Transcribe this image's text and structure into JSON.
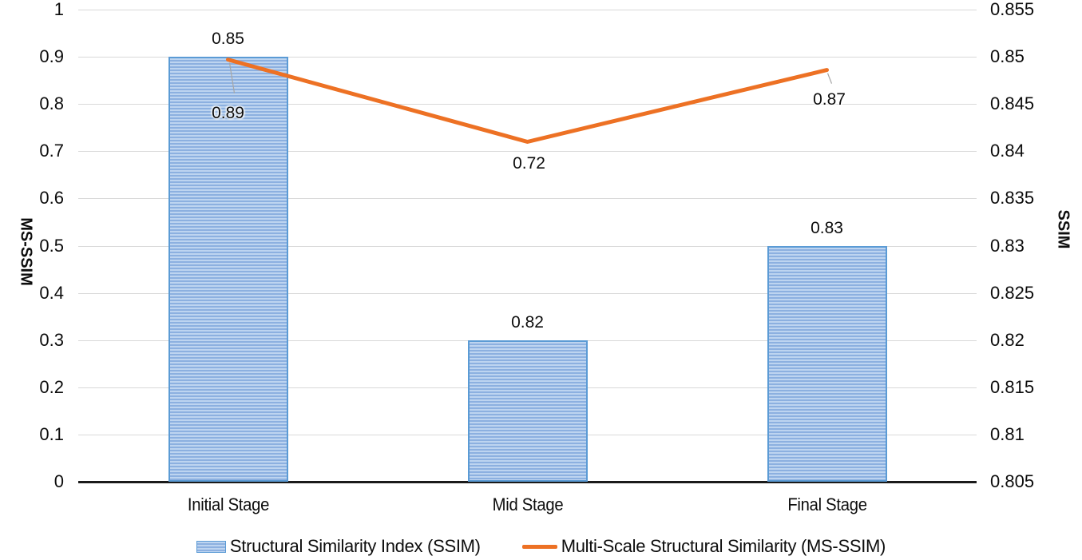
{
  "colors": {
    "bar_stripe_light": "#bdd4f0",
    "bar_stripe_dark": "#8cb0e0",
    "bar_border": "#5b9bd5",
    "line": "#ed7124",
    "gridline": "#d9d9d9",
    "axis_line": "#1a1a1a",
    "leader": "#a6a6a6",
    "text": "#0d0d0d"
  },
  "chart_data": {
    "type": "combo bar + line, dual y-axis",
    "categories": [
      "Initial Stage",
      "Mid Stage",
      "Final Stage"
    ],
    "left_axis": {
      "title": "MS-SSIM",
      "min": 0,
      "max": 1,
      "tick_step": 0.1,
      "ticks": [
        "1",
        "0.9",
        "0.8",
        "0.7",
        "0.6",
        "0.5",
        "0.4",
        "0.3",
        "0.2",
        "0.1",
        "0"
      ]
    },
    "right_axis": {
      "title": "SSIM",
      "min": 0.805,
      "max": 0.855,
      "tick_step": 0.005,
      "ticks": [
        "0.855",
        "0.85",
        "0.845",
        "0.84",
        "0.835",
        "0.83",
        "0.825",
        "0.82",
        "0.815",
        "0.81",
        "0.805"
      ]
    },
    "grid": "horizontal gridlines on",
    "legend_position": "bottom",
    "series": [
      {
        "name": "Structural Similarity Index (SSIM)",
        "chart_type": "bar",
        "axis": "left",
        "values_plotted": [
          0.9,
          0.3,
          0.5
        ],
        "data_labels": [
          "0.85",
          "0.82",
          "0.83"
        ]
      },
      {
        "name": "Multi-Scale Structural Similarity (MS-SSIM)",
        "chart_type": "line",
        "axis": "right",
        "values_plotted": [
          0.8497,
          0.841,
          0.8486
        ],
        "data_labels": [
          "0.89",
          "0.72",
          "0.87"
        ]
      }
    ]
  }
}
